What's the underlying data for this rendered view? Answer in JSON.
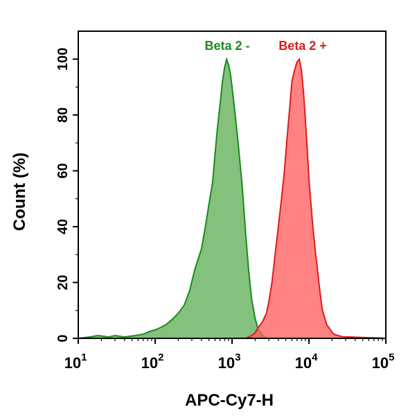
{
  "chart_data": {
    "type": "area",
    "title": "",
    "xlabel": "APC-Cy7-H",
    "ylabel": "Count  (%)",
    "xscale": "log",
    "xlim": [
      10,
      100000
    ],
    "ylim": [
      0,
      110
    ],
    "grid": false,
    "legend": "top",
    "x_ticks": [
      {
        "base": "10",
        "exp": "1",
        "value": 10
      },
      {
        "base": "10",
        "exp": "2",
        "value": 100
      },
      {
        "base": "10",
        "exp": "3",
        "value": 1000
      },
      {
        "base": "10",
        "exp": "4",
        "value": 10000
      },
      {
        "base": "10",
        "exp": "5",
        "value": 100000
      }
    ],
    "y_ticks": [
      "0",
      "20",
      "40",
      "60",
      "80",
      "100"
    ],
    "series": [
      {
        "name": "Beta 2 -",
        "color": "#1a8a1a",
        "fill": "#5aac50",
        "x": [
          10,
          14,
          18,
          25,
          30,
          40,
          55,
          70,
          85,
          100,
          120,
          140,
          170,
          200,
          240,
          280,
          330,
          400,
          450,
          500,
          560,
          600,
          650,
          700,
          750,
          800,
          850,
          900,
          950,
          1000,
          1100,
          1200,
          1350,
          1500,
          1650,
          1800,
          2000,
          2200,
          2500,
          2800
        ],
        "y": [
          0,
          0.5,
          1,
          0.5,
          1,
          0.5,
          1,
          1.5,
          2.5,
          3,
          4,
          5,
          7,
          9,
          12,
          17,
          25,
          32,
          40,
          48,
          56,
          66,
          76,
          84,
          92,
          97,
          100,
          98,
          95,
          90,
          80,
          70,
          55,
          38,
          24,
          14,
          7,
          3,
          1,
          0
        ]
      },
      {
        "name": "Beta 2 +",
        "color": "#e11a1a",
        "fill": "#ff5a5a",
        "x": [
          1500,
          1800,
          2000,
          2200,
          2500,
          2800,
          3000,
          3300,
          3600,
          4000,
          4400,
          4800,
          5200,
          5600,
          6000,
          6500,
          7000,
          7500,
          8000,
          8500,
          9000,
          9500,
          10000,
          11000,
          12000,
          13000,
          14000,
          15000,
          17000,
          19000,
          21000,
          24000,
          28000,
          35000,
          50000,
          70000,
          100000
        ],
        "y": [
          0,
          1,
          2,
          4,
          6,
          9,
          13,
          20,
          29,
          40,
          50,
          60,
          72,
          82,
          92,
          96,
          99,
          100,
          96,
          88,
          78,
          68,
          57,
          43,
          32,
          24,
          16,
          10,
          5,
          3,
          1.5,
          1,
          0.5,
          0.5,
          0.3,
          0.2,
          0
        ]
      }
    ]
  }
}
